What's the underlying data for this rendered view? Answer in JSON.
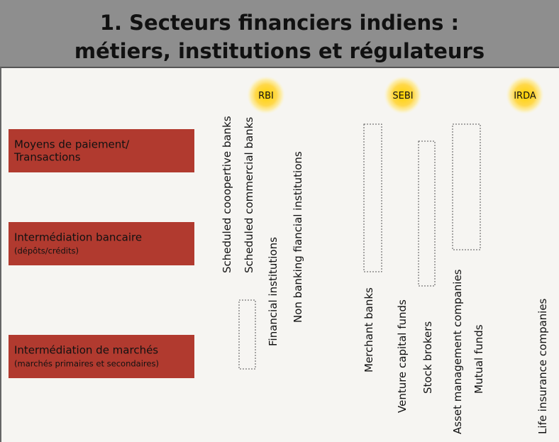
{
  "header": {
    "title_lines": [
      "1. Secteurs financiers indiens :",
      "métiers, institutions et régulateurs"
    ]
  },
  "regulators": [
    "RBI",
    "SEBI",
    "IRDA"
  ],
  "activities": [
    {
      "lines": [
        "Moyens de paiement/",
        "Transactions"
      ]
    },
    {
      "lines": [
        "Intermédiation bancaire"
      ],
      "sub": "(dépôts/crédits)"
    },
    {
      "lines": [
        "Intermédiation de marchés"
      ],
      "sub": "(marchés primaires et secondaires)"
    }
  ],
  "institutions": [
    "Scheduled cooopertive banks",
    "Scheduled commercial banks",
    "Financial institutions",
    "Non banking fiancial institutions",
    "Merchant banks",
    "Venture capital funds",
    "Stock brokers",
    "Asset management companies",
    "Mutual funds",
    "Life insurance companies"
  ]
}
